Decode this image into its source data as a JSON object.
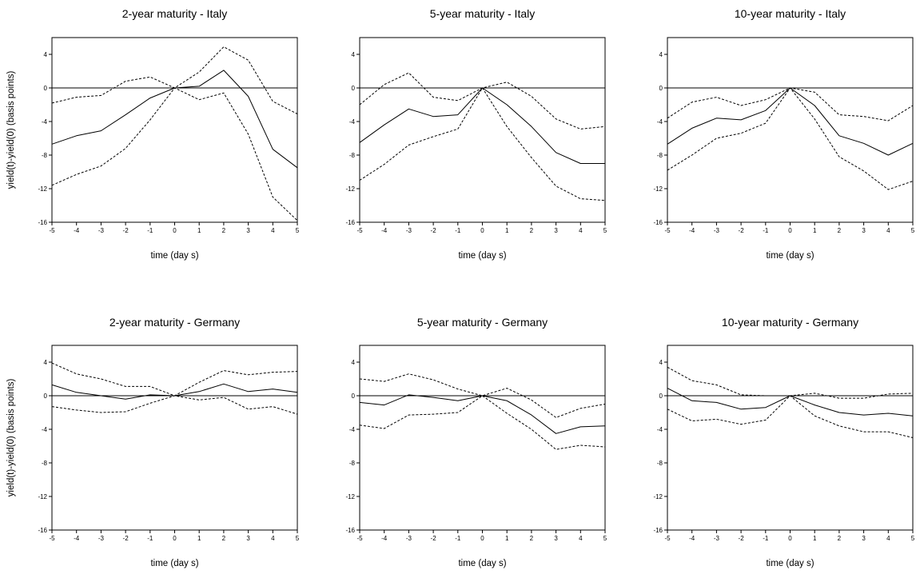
{
  "chart_data": [
    {
      "type": "line",
      "title": "2-year maturity - Italy",
      "xlabel": "time (day s)",
      "ylabel": "yield(t)-yield(0)  (basis points)",
      "x": [
        -5,
        -4,
        -3,
        -2,
        -1,
        0,
        1,
        2,
        3,
        4,
        5
      ],
      "xlim": [
        -5,
        5
      ],
      "ylim": [
        -16,
        6
      ],
      "yticks": [
        -16,
        -12,
        -8,
        -4,
        0,
        4
      ],
      "series": [
        {
          "style": "solid",
          "values": [
            -6.7,
            -5.7,
            -5.1,
            -3.2,
            -1.2,
            0,
            0.2,
            2.1,
            -1.0,
            -7.3,
            -9.5
          ]
        },
        {
          "style": "dashed",
          "values": [
            -1.8,
            -1.1,
            -0.9,
            0.8,
            1.3,
            0,
            1.9,
            4.9,
            3.3,
            -1.6,
            -3.1
          ]
        },
        {
          "style": "dashed",
          "values": [
            -11.6,
            -10.3,
            -9.3,
            -7.2,
            -3.8,
            0,
            -1.4,
            -0.6,
            -5.5,
            -13.0,
            -15.8
          ]
        }
      ]
    },
    {
      "type": "line",
      "title": "5-year maturity - Italy",
      "xlabel": "time (day s)",
      "ylabel": "",
      "x": [
        -5,
        -4,
        -3,
        -2,
        -1,
        0,
        1,
        2,
        3,
        4,
        5
      ],
      "xlim": [
        -5,
        5
      ],
      "ylim": [
        -16,
        6
      ],
      "yticks": [
        -16,
        -12,
        -8,
        -4,
        0,
        4
      ],
      "series": [
        {
          "style": "solid",
          "values": [
            -6.5,
            -4.4,
            -2.5,
            -3.4,
            -3.2,
            0,
            -2.0,
            -4.6,
            -7.7,
            -9.0,
            -9.0
          ]
        },
        {
          "style": "dashed",
          "values": [
            -2.0,
            0.4,
            1.8,
            -1.1,
            -1.5,
            0,
            0.7,
            -1.0,
            -3.7,
            -4.9,
            -4.6
          ]
        },
        {
          "style": "dashed",
          "values": [
            -11.0,
            -9.1,
            -6.8,
            -5.8,
            -4.9,
            0,
            -4.6,
            -8.3,
            -11.7,
            -13.2,
            -13.4
          ]
        }
      ]
    },
    {
      "type": "line",
      "title": "10-year maturity - Italy",
      "xlabel": "time (day s)",
      "ylabel": "",
      "x": [
        -5,
        -4,
        -3,
        -2,
        -1,
        0,
        1,
        2,
        3,
        4,
        5
      ],
      "xlim": [
        -5,
        5
      ],
      "ylim": [
        -16,
        6
      ],
      "yticks": [
        -16,
        -12,
        -8,
        -4,
        0,
        4
      ],
      "series": [
        {
          "style": "solid",
          "values": [
            -6.7,
            -4.8,
            -3.6,
            -3.8,
            -2.7,
            0,
            -2.1,
            -5.7,
            -6.6,
            -8.0,
            -6.6
          ]
        },
        {
          "style": "dashed",
          "values": [
            -3.6,
            -1.7,
            -1.1,
            -2.1,
            -1.4,
            0,
            -0.5,
            -3.2,
            -3.4,
            -3.9,
            -2.1
          ]
        },
        {
          "style": "dashed",
          "values": [
            -9.8,
            -8.0,
            -6.0,
            -5.4,
            -4.2,
            0,
            -3.7,
            -8.2,
            -9.9,
            -12.1,
            -11.1
          ]
        }
      ]
    },
    {
      "type": "line",
      "title": "2-year maturity - Germany",
      "xlabel": "time (day s)",
      "ylabel": "yield(t)-yield(0)  (basis points)",
      "x": [
        -5,
        -4,
        -3,
        -2,
        -1,
        0,
        1,
        2,
        3,
        4,
        5
      ],
      "xlim": [
        -5,
        5
      ],
      "ylim": [
        -16,
        6
      ],
      "yticks": [
        -16,
        -12,
        -8,
        -4,
        0,
        4
      ],
      "series": [
        {
          "style": "solid",
          "values": [
            1.3,
            0.4,
            0.0,
            -0.4,
            0.1,
            0,
            0.5,
            1.4,
            0.5,
            0.8,
            0.4
          ]
        },
        {
          "style": "dashed",
          "values": [
            3.9,
            2.6,
            2.0,
            1.1,
            1.1,
            0,
            1.6,
            3.0,
            2.5,
            2.8,
            2.9
          ]
        },
        {
          "style": "dashed",
          "values": [
            -1.3,
            -1.7,
            -2.0,
            -1.9,
            -0.9,
            0,
            -0.5,
            -0.2,
            -1.6,
            -1.3,
            -2.2
          ]
        }
      ]
    },
    {
      "type": "line",
      "title": "5-year maturity - Germany",
      "xlabel": "time (day s)",
      "ylabel": "",
      "x": [
        -5,
        -4,
        -3,
        -2,
        -1,
        0,
        1,
        2,
        3,
        4,
        5
      ],
      "xlim": [
        -5,
        5
      ],
      "ylim": [
        -16,
        6
      ],
      "yticks": [
        -16,
        -12,
        -8,
        -4,
        0,
        4
      ],
      "series": [
        {
          "style": "solid",
          "values": [
            -0.8,
            -1.1,
            0.1,
            -0.2,
            -0.6,
            0,
            -0.6,
            -2.3,
            -4.5,
            -3.7,
            -3.6
          ]
        },
        {
          "style": "dashed",
          "values": [
            2.0,
            1.7,
            2.6,
            1.9,
            0.8,
            0,
            0.9,
            -0.5,
            -2.6,
            -1.5,
            -1.0
          ]
        },
        {
          "style": "dashed",
          "values": [
            -3.5,
            -3.9,
            -2.3,
            -2.2,
            -2.0,
            0,
            -2.1,
            -4.0,
            -6.4,
            -5.9,
            -6.1
          ]
        }
      ]
    },
    {
      "type": "line",
      "title": "10-year maturity - Germany",
      "xlabel": "time (day s)",
      "ylabel": "",
      "x": [
        -5,
        -4,
        -3,
        -2,
        -1,
        0,
        1,
        2,
        3,
        4,
        5
      ],
      "xlim": [
        -5,
        5
      ],
      "ylim": [
        -16,
        6
      ],
      "yticks": [
        -16,
        -12,
        -8,
        -4,
        0,
        4
      ],
      "series": [
        {
          "style": "solid",
          "values": [
            0.9,
            -0.6,
            -0.8,
            -1.6,
            -1.4,
            0,
            -1.1,
            -2.0,
            -2.3,
            -2.1,
            -2.4
          ]
        },
        {
          "style": "dashed",
          "values": [
            3.4,
            1.8,
            1.3,
            0.1,
            0.0,
            0,
            0.3,
            -0.3,
            -0.3,
            0.2,
            0.3
          ]
        },
        {
          "style": "dashed",
          "values": [
            -1.6,
            -3.0,
            -2.8,
            -3.4,
            -2.9,
            0,
            -2.4,
            -3.6,
            -4.3,
            -4.3,
            -5.0
          ]
        }
      ]
    }
  ]
}
